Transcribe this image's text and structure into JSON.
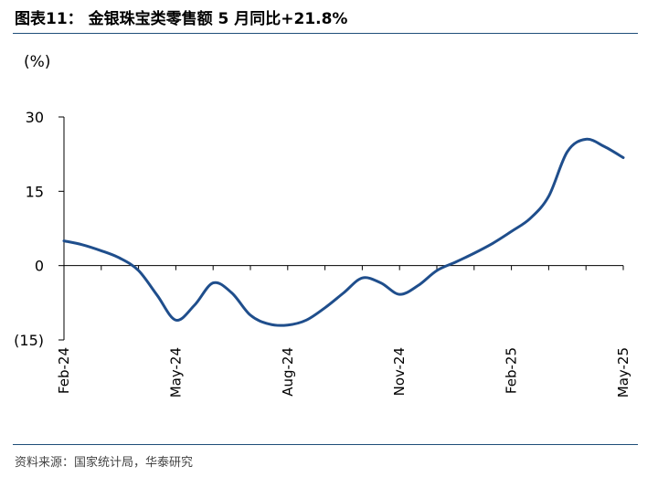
{
  "header": {
    "title": "图表11： 金银珠宝类零售额 5 月同比+21.8%"
  },
  "footer": {
    "source": "资料来源：国家统计局，华泰研究"
  },
  "chart_data": {
    "type": "line",
    "unit_label": "(%)",
    "ylim": [
      -15,
      30
    ],
    "yticks": [
      30,
      15,
      0,
      -15
    ],
    "ytick_labels": [
      "30",
      "15",
      "0",
      "(15)"
    ],
    "xtick_labels": [
      "Feb-24",
      "May-24",
      "Aug-24",
      "Nov-24",
      "Feb-25",
      "May-25"
    ],
    "grid": false,
    "series": [
      {
        "color": "#1f4e8c",
        "x": [
          0,
          0.5,
          1,
          1.5,
          2,
          2.5,
          3,
          3.5,
          4,
          4.5,
          5,
          5.5,
          6,
          6.5,
          7,
          7.5,
          8,
          8.5,
          9,
          9.5,
          10,
          10.5,
          11,
          11.5,
          12,
          12.5,
          13,
          13.5,
          14,
          14.5,
          15
        ],
        "y": [
          5,
          4.2,
          3,
          1.5,
          -1,
          -6,
          -11,
          -8,
          -3.5,
          -5.5,
          -10,
          -11.8,
          -12,
          -11,
          -8.5,
          -5.5,
          -2.5,
          -3.5,
          -5.8,
          -4,
          -1,
          0.7,
          2.5,
          4.5,
          6.9,
          9.5,
          14,
          23,
          25.5,
          24,
          21.8
        ]
      }
    ]
  }
}
